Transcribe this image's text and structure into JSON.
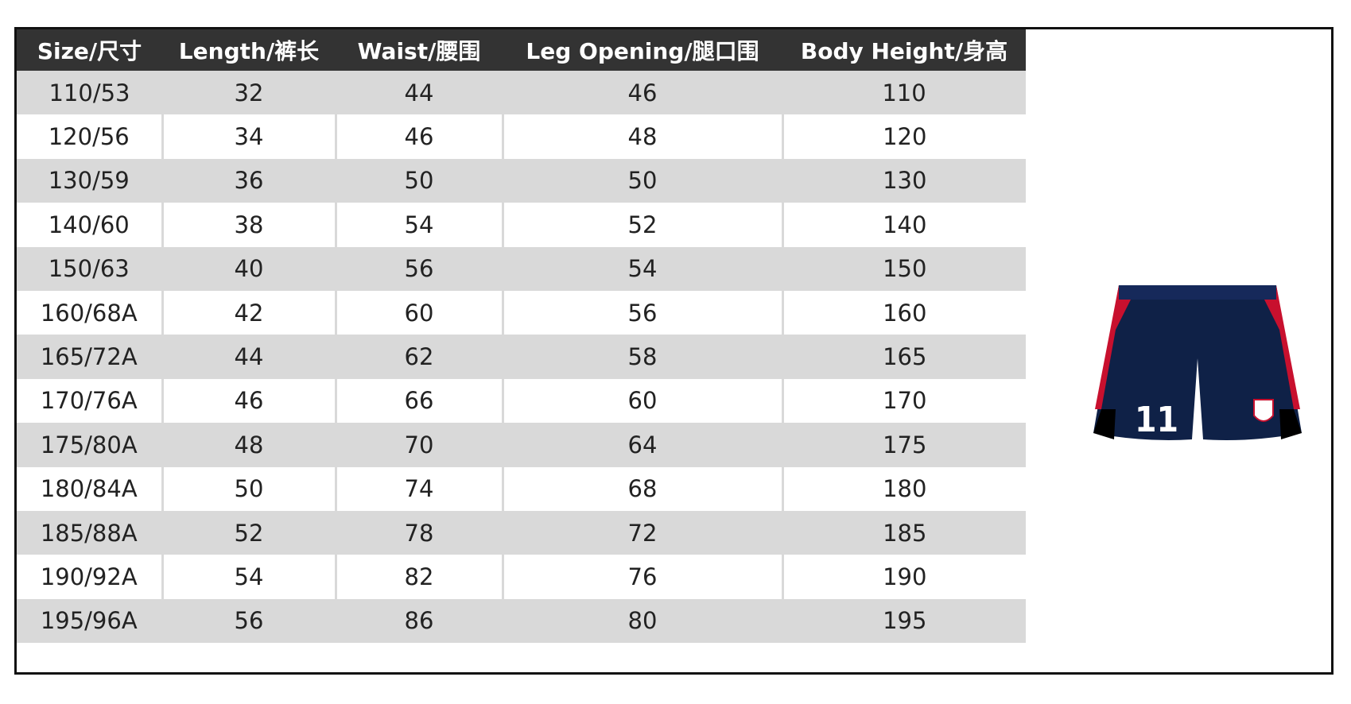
{
  "table": {
    "headers": [
      "Size/尺寸",
      "Length/裤长",
      "Waist/腰围",
      "Leg Opening/腿口围",
      "Body Height/身高"
    ],
    "rows": [
      [
        "110/53",
        32,
        44,
        46,
        110
      ],
      [
        "120/56",
        34,
        46,
        48,
        120
      ],
      [
        "130/59",
        36,
        50,
        50,
        130
      ],
      [
        "140/60",
        38,
        54,
        52,
        140
      ],
      [
        "150/63",
        40,
        56,
        54,
        150
      ],
      [
        "160/68A",
        42,
        60,
        56,
        160
      ],
      [
        "165/72A",
        44,
        62,
        58,
        165
      ],
      [
        "170/76A",
        46,
        66,
        60,
        170
      ],
      [
        "175/80A",
        48,
        70,
        64,
        175
      ],
      [
        "180/84A",
        50,
        74,
        68,
        180
      ],
      [
        "185/88A",
        52,
        78,
        72,
        185
      ],
      [
        "190/92A",
        54,
        82,
        76,
        190
      ],
      [
        "195/96A",
        56,
        86,
        80,
        195
      ]
    ]
  }
}
